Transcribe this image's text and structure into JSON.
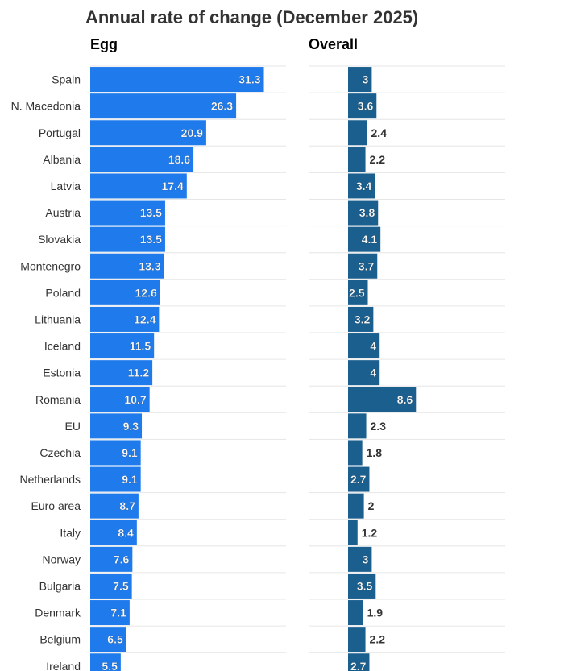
{
  "chart_data": {
    "type": "bar",
    "orientation": "horizontal",
    "title": "Annual rate of change (December 2025)",
    "categories": [
      "Spain",
      "N. Macedonia",
      "Portugal",
      "Albania",
      "Latvia",
      "Austria",
      "Slovakia",
      "Montenegro",
      "Poland",
      "Lithuania",
      "Iceland",
      "Estonia",
      "Romania",
      "EU",
      "Czechia",
      "Netherlands",
      "Euro area",
      "Italy",
      "Norway",
      "Bulgaria",
      "Denmark",
      "Belgium",
      "Ireland"
    ],
    "series": [
      {
        "name": "Egg",
        "color": "#1f7bec",
        "xlim": [
          0,
          35
        ],
        "values": [
          31.3,
          26.3,
          20.9,
          18.6,
          17.4,
          13.5,
          13.5,
          13.3,
          12.6,
          12.4,
          11.5,
          11.2,
          10.7,
          9.3,
          9.1,
          9.1,
          8.7,
          8.4,
          7.6,
          7.5,
          7.1,
          6.5,
          5.5
        ]
      },
      {
        "name": "Overall",
        "color": "#1b5f8e",
        "xlim": [
          -5,
          20
        ],
        "values": [
          3,
          3.6,
          2.4,
          2.2,
          3.4,
          3.8,
          4.1,
          3.7,
          2.5,
          3.2,
          4,
          4,
          8.6,
          2.3,
          1.8,
          2.7,
          2,
          1.2,
          3,
          3.5,
          1.9,
          2.2,
          2.7
        ]
      }
    ],
    "grid": true,
    "legend": "none"
  }
}
